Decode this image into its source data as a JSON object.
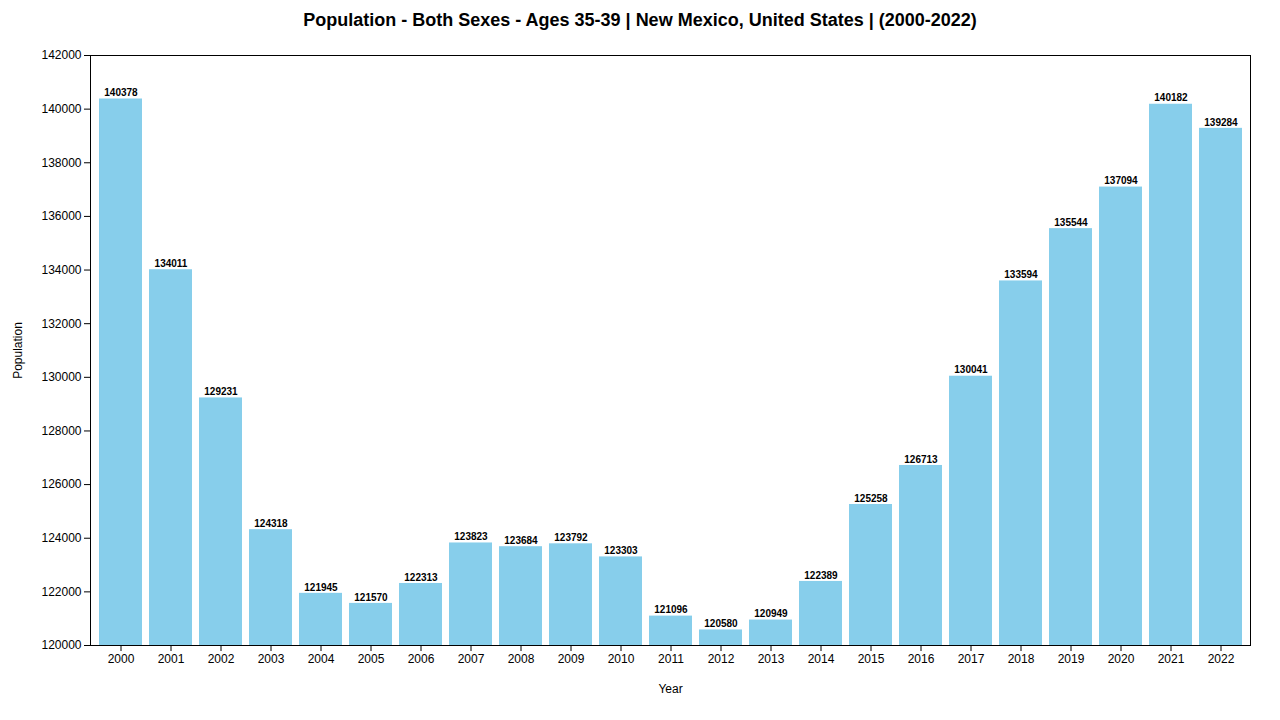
{
  "chart_data": {
    "type": "bar",
    "title": "Population - Both Sexes - Ages 35-39 | New Mexico, United States |  (2000-2022)",
    "x_label": "Year",
    "y_label": "Population",
    "categories": [
      "2000",
      "2001",
      "2002",
      "2003",
      "2004",
      "2005",
      "2006",
      "2007",
      "2008",
      "2009",
      "2010",
      "2011",
      "2012",
      "2013",
      "2014",
      "2015",
      "2016",
      "2017",
      "2018",
      "2019",
      "2020",
      "2021",
      "2022"
    ],
    "values": [
      140378,
      134011,
      129231,
      124318,
      121945,
      121570,
      122313,
      123823,
      123684,
      123792,
      123303,
      121096,
      120580,
      120949,
      122389,
      125258,
      126713,
      130041,
      133594,
      135544,
      137094,
      140182,
      139284
    ],
    "color": "#87CEEB",
    "ylim": [
      120000,
      142000
    ],
    "yticks": [
      120000,
      122000,
      124000,
      126000,
      128000,
      130000,
      132000,
      134000,
      136000,
      138000,
      140000,
      142000
    ],
    "data_labels": true,
    "grid": false
  }
}
